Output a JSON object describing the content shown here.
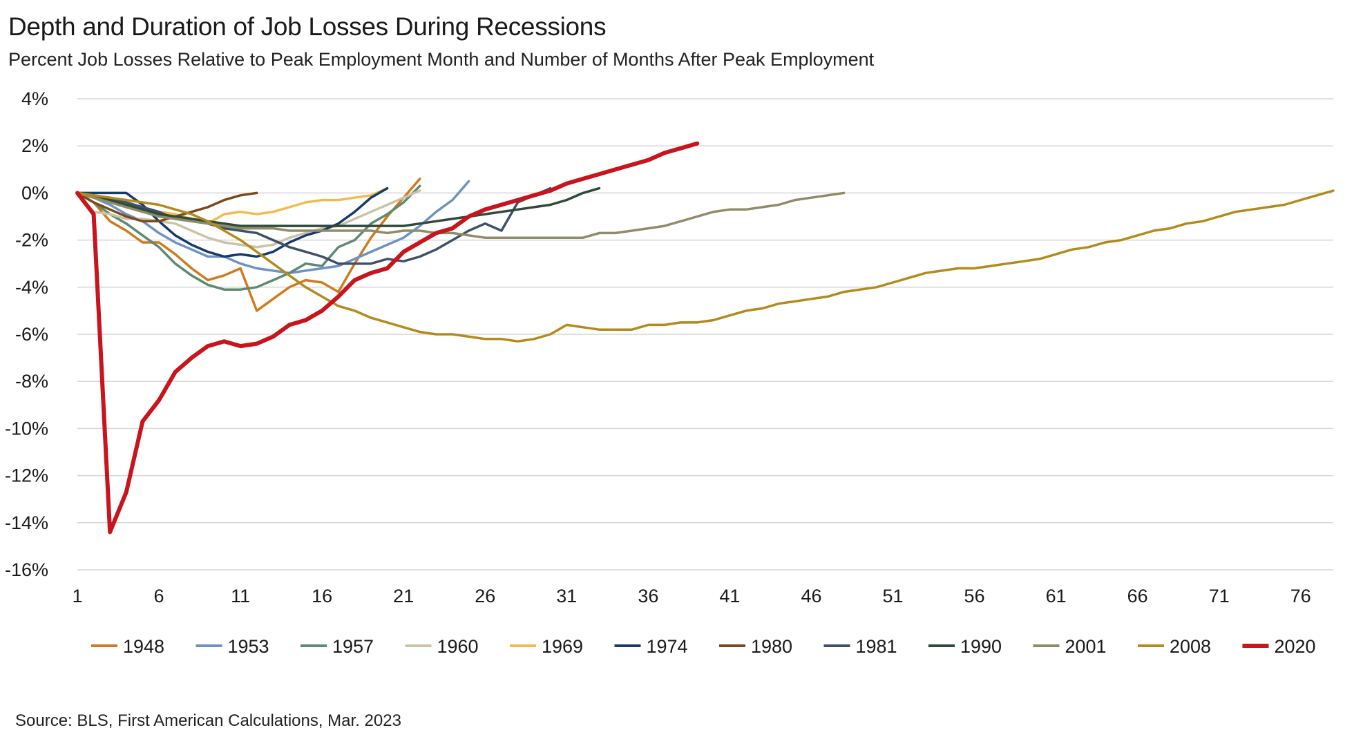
{
  "chart_data": {
    "type": "line",
    "title": "Depth and Duration of Job Losses During Recessions",
    "subtitle": "Percent Job Losses Relative to Peak Employment Month and Number of Months After Peak Employment",
    "source": "Source: BLS, First American Calculations, Mar. 2023",
    "xlabel": "",
    "ylabel": "",
    "xlim": [
      1,
      78
    ],
    "ylim": [
      -16,
      4
    ],
    "x_ticks": [
      1,
      6,
      11,
      16,
      21,
      26,
      31,
      36,
      41,
      46,
      51,
      56,
      61,
      66,
      71,
      76
    ],
    "y_ticks": [
      4,
      2,
      0,
      -2,
      -4,
      -6,
      -8,
      -10,
      -12,
      -14,
      -16
    ],
    "y_tick_labels": [
      "4%",
      "2%",
      "0%",
      "-2%",
      "-4%",
      "-6%",
      "-8%",
      "-10%",
      "-12%",
      "-14%",
      "-16%"
    ],
    "legend_position": "bottom",
    "grid": true,
    "series": [
      {
        "name": "1948",
        "color": "#D07A1E",
        "width": 3.5,
        "values": [
          0,
          -0.4,
          -1.2,
          -1.6,
          -2.1,
          -2.1,
          -2.6,
          -3.2,
          -3.7,
          -3.5,
          -3.2,
          -5.0,
          -4.5,
          -4.0,
          -3.7,
          -3.8,
          -4.2,
          -3.0,
          -1.9,
          -1.0,
          -0.2,
          0.6
        ]
      },
      {
        "name": "1953",
        "color": "#6C93C4",
        "width": 3.5,
        "values": [
          0,
          -0.2,
          -0.5,
          -0.9,
          -1.2,
          -1.7,
          -2.1,
          -2.4,
          -2.7,
          -2.7,
          -3.0,
          -3.2,
          -3.3,
          -3.4,
          -3.3,
          -3.2,
          -3.1,
          -2.8,
          -2.5,
          -2.2,
          -1.9,
          -1.4,
          -0.8,
          -0.3,
          0.5
        ]
      },
      {
        "name": "1957",
        "color": "#5C8A72",
        "width": 3.5,
        "values": [
          0,
          -0.4,
          -0.9,
          -1.3,
          -1.8,
          -2.3,
          -3.0,
          -3.5,
          -3.9,
          -4.1,
          -4.1,
          -4.0,
          -3.7,
          -3.4,
          -3.0,
          -3.1,
          -2.3,
          -2.0,
          -1.3,
          -0.9,
          -0.4,
          0.3
        ]
      },
      {
        "name": "1960",
        "color": "#CCC3A6",
        "width": 3.5,
        "values": [
          0,
          -0.8,
          -0.9,
          -1.1,
          -1.1,
          -1.2,
          -1.3,
          -1.6,
          -1.9,
          -2.1,
          -2.2,
          -2.3,
          -2.2,
          -1.9,
          -1.7,
          -1.5,
          -1.4,
          -1.1,
          -0.8,
          -0.5,
          -0.2,
          0.1
        ]
      },
      {
        "name": "1969",
        "color": "#F0BC4E",
        "width": 3.5,
        "values": [
          0,
          -0.2,
          -0.4,
          -0.6,
          -0.7,
          -0.8,
          -0.9,
          -1.1,
          -1.3,
          -0.9,
          -0.8,
          -0.9,
          -0.8,
          -0.6,
          -0.4,
          -0.3,
          -0.3,
          -0.2,
          -0.1,
          0.2
        ]
      },
      {
        "name": "1974",
        "color": "#163A6B",
        "width": 3.5,
        "values": [
          0,
          0,
          0,
          0.0,
          -0.5,
          -1.2,
          -1.8,
          -2.2,
          -2.5,
          -2.7,
          -2.6,
          -2.7,
          -2.5,
          -2.1,
          -1.8,
          -1.6,
          -1.3,
          -0.8,
          -0.2,
          0.2
        ]
      },
      {
        "name": "1980",
        "color": "#7B4A1A",
        "width": 3.5,
        "values": [
          0,
          -0.4,
          -0.7,
          -1.0,
          -1.2,
          -1.2,
          -1.0,
          -0.8,
          -0.6,
          -0.3,
          -0.1,
          0.0
        ]
      },
      {
        "name": "1981",
        "color": "#3E5168",
        "width": 3.5,
        "values": [
          0,
          -0.1,
          -0.2,
          -0.4,
          -0.6,
          -0.8,
          -1.1,
          -1.2,
          -1.3,
          -1.5,
          -1.6,
          -1.7,
          -2.0,
          -2.3,
          -2.5,
          -2.7,
          -3.0,
          -3.0,
          -3.0,
          -2.8,
          -2.9,
          -2.7,
          -2.4,
          -2.0,
          -1.6,
          -1.3,
          -1.6,
          -0.4,
          -0.1,
          0.2
        ]
      },
      {
        "name": "1990",
        "color": "#2F4A3A",
        "width": 3.5,
        "values": [
          0,
          -0.1,
          -0.3,
          -0.5,
          -0.7,
          -0.9,
          -1.0,
          -1.1,
          -1.2,
          -1.3,
          -1.4,
          -1.4,
          -1.4,
          -1.4,
          -1.4,
          -1.4,
          -1.4,
          -1.4,
          -1.4,
          -1.4,
          -1.4,
          -1.3,
          -1.2,
          -1.1,
          -1.0,
          -0.9,
          -0.8,
          -0.7,
          -0.6,
          -0.5,
          -0.3,
          0.0,
          0.2
        ]
      },
      {
        "name": "2001",
        "color": "#8F8C68",
        "width": 3.5,
        "values": [
          0,
          -0.2,
          -0.4,
          -0.6,
          -0.8,
          -1.0,
          -1.1,
          -1.2,
          -1.3,
          -1.4,
          -1.5,
          -1.5,
          -1.5,
          -1.6,
          -1.6,
          -1.6,
          -1.6,
          -1.6,
          -1.6,
          -1.7,
          -1.6,
          -1.6,
          -1.7,
          -1.7,
          -1.8,
          -1.9,
          -1.9,
          -1.9,
          -1.9,
          -1.9,
          -1.9,
          -1.9,
          -1.7,
          -1.7,
          -1.6,
          -1.5,
          -1.4,
          -1.2,
          -1.0,
          -0.8,
          -0.7,
          -0.7,
          -0.6,
          -0.5,
          -0.3,
          -0.2,
          -0.1,
          0.0
        ]
      },
      {
        "name": "2008",
        "color": "#B38A1C",
        "width": 3.5,
        "values": [
          0,
          -0.1,
          -0.2,
          -0.3,
          -0.4,
          -0.5,
          -0.7,
          -0.9,
          -1.2,
          -1.6,
          -2.0,
          -2.5,
          -3.0,
          -3.5,
          -4.0,
          -4.4,
          -4.8,
          -5.0,
          -5.3,
          -5.5,
          -5.7,
          -5.9,
          -6.0,
          -6.0,
          -6.1,
          -6.2,
          -6.2,
          -6.3,
          -6.2,
          -6.0,
          -5.6,
          -5.7,
          -5.8,
          -5.8,
          -5.8,
          -5.6,
          -5.6,
          -5.5,
          -5.5,
          -5.4,
          -5.2,
          -5.0,
          -4.9,
          -4.7,
          -4.6,
          -4.5,
          -4.4,
          -4.2,
          -4.1,
          -4.0,
          -3.8,
          -3.6,
          -3.4,
          -3.3,
          -3.2,
          -3.2,
          -3.1,
          -3.0,
          -2.9,
          -2.8,
          -2.6,
          -2.4,
          -2.3,
          -2.1,
          -2.0,
          -1.8,
          -1.6,
          -1.5,
          -1.3,
          -1.2,
          -1.0,
          -0.8,
          -0.7,
          -0.6,
          -0.5,
          -0.3,
          -0.1,
          0.1
        ]
      },
      {
        "name": "2020",
        "color": "#C8141C",
        "width": 6,
        "values": [
          0,
          -0.9,
          -14.4,
          -12.7,
          -9.7,
          -8.8,
          -7.6,
          -7.0,
          -6.5,
          -6.3,
          -6.5,
          -6.4,
          -6.1,
          -5.6,
          -5.4,
          -5.0,
          -4.4,
          -3.7,
          -3.4,
          -3.2,
          -2.5,
          -2.1,
          -1.7,
          -1.5,
          -1.0,
          -0.7,
          -0.5,
          -0.3,
          -0.1,
          0.1,
          0.4,
          0.6,
          0.8,
          1.0,
          1.2,
          1.4,
          1.7,
          1.9,
          2.1
        ]
      }
    ]
  }
}
